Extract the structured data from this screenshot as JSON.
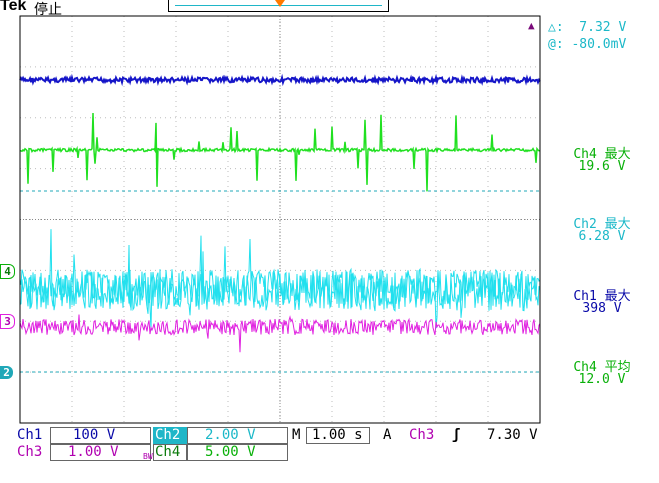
{
  "header": {
    "brand": "Tek",
    "status": "停止"
  },
  "cursor": {
    "delta": "△:  7.32 V",
    "at": "@: -80.0mV"
  },
  "readouts": [
    {
      "label": "Ch4 最大",
      "value": "19.6 V",
      "color": "#08b008"
    },
    {
      "label": "Ch2 最大",
      "value": "6.28 V",
      "color": "#1bb8c8"
    },
    {
      "label": "Ch1 最大",
      "value": "398 V",
      "color": "#0a0aa8"
    },
    {
      "label": "Ch4 平均",
      "value": "12.0 V",
      "color": "#08b008"
    }
  ],
  "markers": {
    "ch4": "4",
    "ch3": "3",
    "ch2": "2"
  },
  "statusbar": {
    "ch1_label": "Ch1",
    "ch1_scale": "100 V",
    "ch2_label": "Ch2",
    "ch2_scale": "2.00 V",
    "ch3_label": "Ch3",
    "ch3_scale": "1.00 V",
    "bw_label": "BW",
    "ch4_label": "Ch4",
    "ch4_scale": "5.00 V",
    "time_label": "M",
    "time_scale": "1.00 s",
    "trigger_label": "A",
    "trigger_source": "Ch3",
    "trigger_slope": "ʃ",
    "trigger_level": "7.30 V"
  },
  "colors": {
    "ch1": "#1515c8",
    "ch2": "#22e0ee",
    "ch3": "#e020e0",
    "ch4": "#20e020",
    "grid": "#bdbdbd",
    "cursor": "#20a8b8"
  }
}
